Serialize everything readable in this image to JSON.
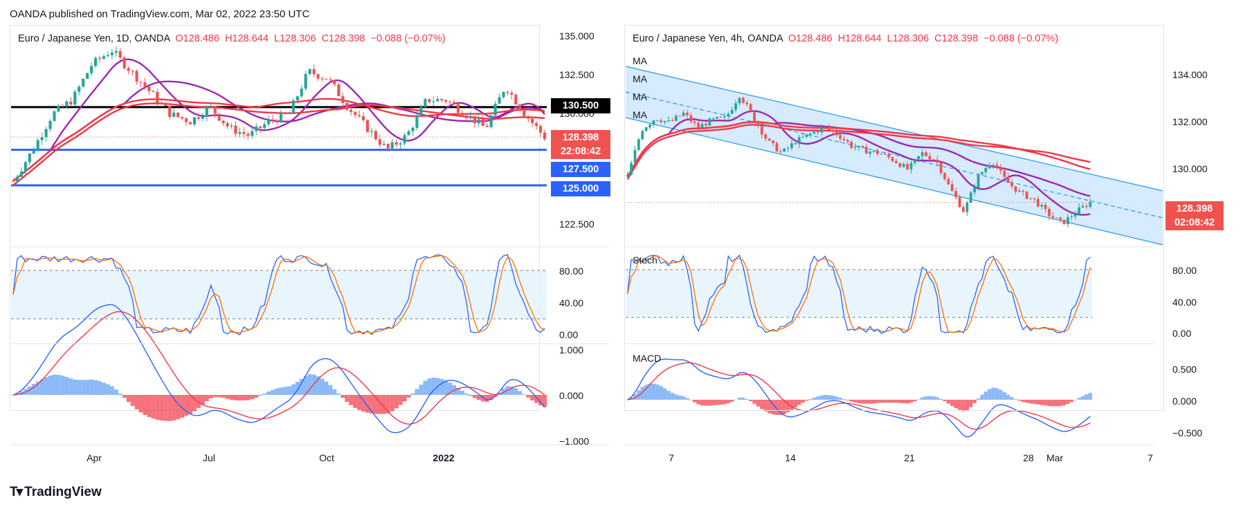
{
  "publisher_line": "OANDA published on TradingView.com, Mar 02, 2022 23:50 UTC",
  "brand": "TradingView",
  "colors": {
    "up": "#26a69a",
    "down": "#ef5350",
    "ma_purple": "#9c27b0",
    "ma_red": "#f23645",
    "level_blue": "#2962ff",
    "level_black": "#000000",
    "stoch_k": "#2962ff",
    "stoch_d": "#ff6d00",
    "macd_line": "#2962ff",
    "signal_line": "#f23645",
    "channel_fill": "#bbdefb",
    "hist_pos": "#5b9cf6",
    "hist_neg": "#f23645"
  },
  "left_chart": {
    "header": {
      "symbol": "Euro / Japanese Yen, 1D, OANDA",
      "o": "O128.486",
      "h": "H128.644",
      "l": "L128.306",
      "c": "C128.398",
      "change": "−0.088 (−0.07%)"
    },
    "price_axis": [
      "135.000",
      "132.500",
      "130.000",
      "122.500"
    ],
    "last_price_tag": "128.398",
    "countdown_tag": "22:08:42",
    "level_tags": [
      "130.500",
      "127.500",
      "125.000"
    ],
    "stoch_axis": [
      "80.00",
      "40.00",
      "0.00"
    ],
    "macd_axis": [
      "1.000",
      "0.000",
      "−1.000"
    ],
    "x_labels": [
      "Apr",
      "Jul",
      "Oct",
      "2022"
    ]
  },
  "right_chart": {
    "header": {
      "symbol": "Euro / Japanese Yen, 4h, OANDA",
      "o": "O128.486",
      "h": "H128.644",
      "l": "L128.306",
      "c": "C128.398",
      "change": "−0.088 (−0.07%)"
    },
    "ma_labels": [
      "MA",
      "MA",
      "MA",
      "MA"
    ],
    "price_axis": [
      "134.000",
      "132.000",
      "130.000"
    ],
    "last_price_tag": "128.398",
    "countdown_tag": "02:08:42",
    "stoch_label": "Stoch",
    "stoch_axis": [
      "80.00",
      "40.00",
      "0.00"
    ],
    "macd_label": "MACD",
    "macd_axis": [
      "0.500",
      "0.000",
      "−0.500"
    ],
    "x_labels": [
      "7",
      "14",
      "21",
      "28",
      "Mar",
      "7"
    ]
  },
  "chart_data": [
    {
      "type": "candlestick",
      "title": "Euro / Japanese Yen, 1D, OANDA",
      "ylim": [
        121.5,
        135.5
      ],
      "x_labels": [
        "Apr",
        "Jul",
        "Oct",
        "2022"
      ],
      "horizontal_levels": [
        130.5,
        127.5,
        125.0
      ],
      "approx_close_path": [
        125.3,
        127.5,
        130.0,
        131.0,
        133.5,
        134.5,
        133.0,
        131.5,
        130.0,
        129.5,
        130.5,
        129.0,
        128.5,
        129.5,
        130.0,
        133.0,
        132.5,
        130.5,
        129.0,
        127.5,
        128.5,
        131.0,
        131.0,
        130.0,
        129.0,
        132.0,
        130.0,
        128.398
      ],
      "last": 128.398
    },
    {
      "type": "candlestick",
      "title": "Euro / Japanese Yen, 4h, OANDA",
      "ylim": [
        127.0,
        135.5
      ],
      "x_labels": [
        "7",
        "14",
        "21",
        "28",
        "Mar",
        "7"
      ],
      "approx_close_path": [
        129.5,
        131.5,
        132.0,
        131.8,
        132.2,
        131.6,
        131.9,
        132.0,
        133.0,
        132.0,
        131.0,
        130.5,
        131.0,
        131.3,
        131.6,
        131.3,
        130.8,
        130.6,
        130.5,
        130.2,
        129.8,
        130.5,
        130.2,
        129.0,
        128.0,
        129.5,
        130.2,
        129.3,
        128.8,
        128.5,
        127.9,
        127.5,
        128.0,
        128.398
      ],
      "last": 128.398
    }
  ]
}
